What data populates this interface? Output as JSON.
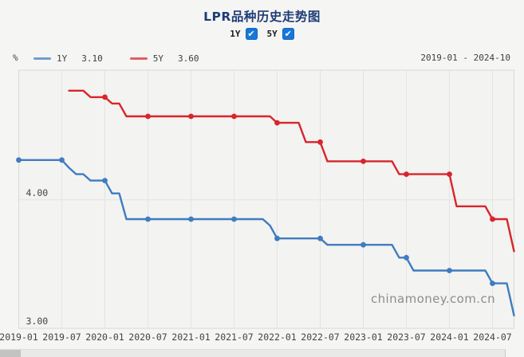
{
  "header": {
    "title": "LPR品种历史走势图",
    "checkbox_color": "#1877d8",
    "series_toggles": [
      {
        "label": "1Y",
        "checked": true,
        "check_glyph": "✔"
      },
      {
        "label": "5Y",
        "checked": true,
        "check_glyph": "✔"
      }
    ]
  },
  "legend": {
    "unit": "%",
    "items": [
      {
        "name": "1Y",
        "value": "3.10",
        "color": "#3f7cc0"
      },
      {
        "name": "5Y",
        "value": "3.60",
        "color": "#d8252b"
      }
    ],
    "date_range": "2019-01 - 2024-10"
  },
  "watermark": "chinamoney.com.cn",
  "chart_data": {
    "type": "line",
    "title": "LPR品种历史走势图",
    "xlabel": "",
    "ylabel": "%",
    "x_start": "2019-01",
    "x_end": "2024-10",
    "x_ticks": [
      "2019-01",
      "2019-07",
      "2020-01",
      "2020-07",
      "2021-01",
      "2021-07",
      "2022-01",
      "2022-07",
      "2023-01",
      "2023-07",
      "2024-01",
      "2024-07"
    ],
    "y_axis": {
      "ticks": [
        {
          "label": "4.00",
          "value": 4.0
        },
        {
          "label": "3.00",
          "value": 3.0
        }
      ],
      "ylim": [
        3.0,
        5.01
      ]
    },
    "grid": true,
    "marker_on_months": [
      "01",
      "07"
    ],
    "plot_bg": "#f3f3f1",
    "grid_color": "#e4e4e2",
    "border_color": "#d8d8d6",
    "series": [
      {
        "name": "1Y",
        "color": "#3f7cc0",
        "current": "3.10",
        "values": [
          4.31,
          4.31,
          4.31,
          4.31,
          4.31,
          4.31,
          4.31,
          4.25,
          4.2,
          4.2,
          4.15,
          4.15,
          4.15,
          4.05,
          4.05,
          3.85,
          3.85,
          3.85,
          3.85,
          3.85,
          3.85,
          3.85,
          3.85,
          3.85,
          3.85,
          3.85,
          3.85,
          3.85,
          3.85,
          3.85,
          3.85,
          3.85,
          3.85,
          3.85,
          3.85,
          3.8,
          3.7,
          3.7,
          3.7,
          3.7,
          3.7,
          3.7,
          3.7,
          3.65,
          3.65,
          3.65,
          3.65,
          3.65,
          3.65,
          3.65,
          3.65,
          3.65,
          3.65,
          3.55,
          3.55,
          3.45,
          3.45,
          3.45,
          3.45,
          3.45,
          3.45,
          3.45,
          3.45,
          3.45,
          3.45,
          3.45,
          3.35,
          3.35,
          3.35,
          3.1
        ]
      },
      {
        "name": "5Y",
        "color": "#d8252b",
        "current": "3.60",
        "values": [
          null,
          null,
          null,
          null,
          null,
          null,
          null,
          4.85,
          4.85,
          4.85,
          4.8,
          4.8,
          4.8,
          4.75,
          4.75,
          4.65,
          4.65,
          4.65,
          4.65,
          4.65,
          4.65,
          4.65,
          4.65,
          4.65,
          4.65,
          4.65,
          4.65,
          4.65,
          4.65,
          4.65,
          4.65,
          4.65,
          4.65,
          4.65,
          4.65,
          4.65,
          4.6,
          4.6,
          4.6,
          4.6,
          4.45,
          4.45,
          4.45,
          4.3,
          4.3,
          4.3,
          4.3,
          4.3,
          4.3,
          4.3,
          4.3,
          4.3,
          4.3,
          4.2,
          4.2,
          4.2,
          4.2,
          4.2,
          4.2,
          4.2,
          4.2,
          3.95,
          3.95,
          3.95,
          3.95,
          3.95,
          3.85,
          3.85,
          3.85,
          3.6
        ]
      }
    ]
  }
}
